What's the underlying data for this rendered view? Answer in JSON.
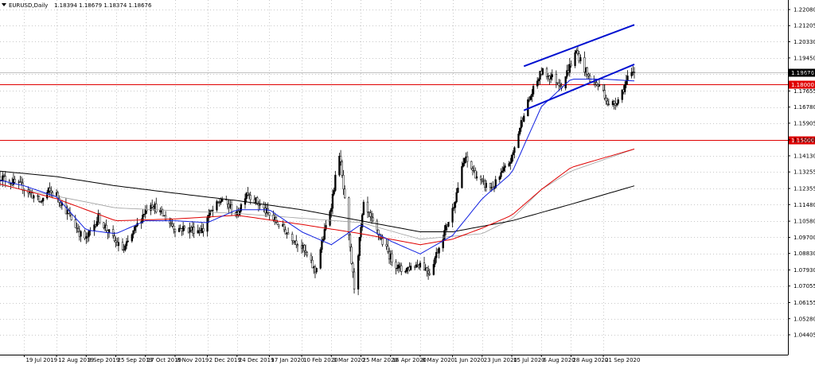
{
  "header": {
    "symbol": "EURUSD,Daily",
    "ohlc": "1.18394 1.18679 1.18374 1.18676"
  },
  "chart_data": {
    "type": "line",
    "title": "EURUSD,Daily",
    "xlabel": "",
    "ylabel": "",
    "ylim": [
      1.04225,
      1.2246
    ],
    "y_ticks": [
      "1.22080",
      "1.21205",
      "1.20330",
      "1.19450",
      "1.18575",
      "1.17655",
      "1.16780",
      "1.15905",
      "1.15000",
      "1.14130",
      "1.13255",
      "1.12355",
      "1.11480",
      "1.10580",
      "1.09700",
      "1.08830",
      "1.07930",
      "1.07055",
      "1.06155",
      "1.05280",
      "1.04405"
    ],
    "x_ticks": [
      "19 Jul 2019",
      "12 Aug 2019",
      "3 Sep 2019",
      "25 Sep 2019",
      "17 Oct 2019",
      "8 Nov 2019",
      "2 Dec 2019",
      "24 Dec 2019",
      "17 Jan 2020",
      "10 Feb 2020",
      "3 Mar 2020",
      "25 Mar 2020",
      "16 Apr 2020",
      "8 May 2020",
      "1 Jun 2020",
      "23 Jun 2020",
      "15 Jul 2020",
      "6 Aug 2020",
      "28 Aug 2020",
      "21 Sep 2020"
    ],
    "x_dates": [
      "2019-07-19",
      "2019-08-12",
      "2019-09-03",
      "2019-09-25",
      "2019-10-17",
      "2019-11-08",
      "2019-12-02",
      "2019-12-24",
      "2020-01-17",
      "2020-02-10",
      "2020-03-03",
      "2020-03-25",
      "2020-04-16",
      "2020-05-08",
      "2020-06-01",
      "2020-06-23",
      "2020-07-15",
      "2020-08-06",
      "2020-08-28",
      "2020-09-21"
    ],
    "price_anchors": [
      [
        "2019-07-01",
        1.13
      ],
      [
        "2019-07-19",
        1.124
      ],
      [
        "2019-07-31",
        1.116
      ],
      [
        "2019-08-06",
        1.122
      ],
      [
        "2019-08-12",
        1.12
      ],
      [
        "2019-08-30",
        1.0985
      ],
      [
        "2019-09-03",
        1.096
      ],
      [
        "2019-09-12",
        1.108
      ],
      [
        "2019-09-25",
        1.094
      ],
      [
        "2019-10-01",
        1.09
      ],
      [
        "2019-10-17",
        1.112
      ],
      [
        "2019-10-21",
        1.116
      ],
      [
        "2019-11-08",
        1.102
      ],
      [
        "2019-11-29",
        1.101
      ],
      [
        "2019-12-02",
        1.108
      ],
      [
        "2019-12-13",
        1.118
      ],
      [
        "2019-12-24",
        1.109
      ],
      [
        "2019-12-31",
        1.122
      ],
      [
        "2020-01-17",
        1.109
      ],
      [
        "2020-02-10",
        1.092
      ],
      [
        "2020-02-20",
        1.0785
      ],
      [
        "2020-03-03",
        1.115
      ],
      [
        "2020-03-09",
        1.143
      ],
      [
        "2020-03-20",
        1.07
      ],
      [
        "2020-03-27",
        1.114
      ],
      [
        "2020-04-16",
        1.086
      ],
      [
        "2020-04-24",
        1.079
      ],
      [
        "2020-05-08",
        1.083
      ],
      [
        "2020-05-15",
        1.078
      ],
      [
        "2020-06-01",
        1.112
      ],
      [
        "2020-06-10",
        1.14
      ],
      [
        "2020-06-23",
        1.126
      ],
      [
        "2020-07-01",
        1.124
      ],
      [
        "2020-07-15",
        1.14
      ],
      [
        "2020-07-24",
        1.165
      ],
      [
        "2020-07-31",
        1.177
      ],
      [
        "2020-08-06",
        1.187
      ],
      [
        "2020-08-14",
        1.184
      ],
      [
        "2020-08-21",
        1.18
      ],
      [
        "2020-09-01",
        1.198
      ],
      [
        "2020-09-10",
        1.184
      ],
      [
        "2020-09-21",
        1.177
      ],
      [
        "2020-09-25",
        1.168
      ],
      [
        "2020-10-02",
        1.172
      ],
      [
        "2020-10-09",
        1.183
      ],
      [
        "2020-10-14",
        1.1868
      ]
    ],
    "ma_fast_anchors": [
      [
        "2019-07-01",
        1.128
      ],
      [
        "2019-07-19",
        1.125
      ],
      [
        "2019-08-12",
        1.119
      ],
      [
        "2019-09-03",
        1.101
      ],
      [
        "2019-09-25",
        1.099
      ],
      [
        "2019-10-17",
        1.106
      ],
      [
        "2019-11-08",
        1.106
      ],
      [
        "2019-12-02",
        1.105
      ],
      [
        "2019-12-24",
        1.112
      ],
      [
        "2020-01-17",
        1.112
      ],
      [
        "2020-02-10",
        1.1
      ],
      [
        "2020-03-03",
        1.093
      ],
      [
        "2020-03-25",
        1.104
      ],
      [
        "2020-04-16",
        1.095
      ],
      [
        "2020-05-08",
        1.088
      ],
      [
        "2020-06-01",
        1.098
      ],
      [
        "2020-06-23",
        1.118
      ],
      [
        "2020-07-15",
        1.132
      ],
      [
        "2020-08-06",
        1.168
      ],
      [
        "2020-08-28",
        1.183
      ],
      [
        "2020-09-21",
        1.183
      ],
      [
        "2020-10-14",
        1.182
      ]
    ],
    "ma_mid_anchors": [
      [
        "2019-07-01",
        1.126
      ],
      [
        "2019-08-12",
        1.118
      ],
      [
        "2019-09-25",
        1.106
      ],
      [
        "2019-11-08",
        1.107
      ],
      [
        "2019-12-24",
        1.109
      ],
      [
        "2020-02-10",
        1.104
      ],
      [
        "2020-03-25",
        1.099
      ],
      [
        "2020-05-08",
        1.093
      ],
      [
        "2020-06-01",
        1.096
      ],
      [
        "2020-06-23",
        1.102
      ],
      [
        "2020-07-15",
        1.109
      ],
      [
        "2020-08-06",
        1.123
      ],
      [
        "2020-08-28",
        1.135
      ],
      [
        "2020-10-14",
        1.145
      ]
    ],
    "ma_slow_anchors": [
      [
        "2019-07-01",
        1.133
      ],
      [
        "2019-08-12",
        1.13
      ],
      [
        "2019-09-25",
        1.125
      ],
      [
        "2019-11-08",
        1.121
      ],
      [
        "2019-12-24",
        1.117
      ],
      [
        "2020-02-10",
        1.112
      ],
      [
        "2020-03-25",
        1.106
      ],
      [
        "2020-05-08",
        1.1
      ],
      [
        "2020-06-01",
        1.1
      ],
      [
        "2020-07-15",
        1.106
      ],
      [
        "2020-08-28",
        1.115
      ],
      [
        "2020-10-14",
        1.125
      ]
    ],
    "levels": [
      {
        "value": 1.18,
        "label": "1.18000",
        "color": "#e00000"
      },
      {
        "value": 1.15,
        "label": "1.15000",
        "color": "#e00000"
      }
    ],
    "last_price": {
      "value": 1.18676,
      "label": "1.18676",
      "color": "#000000"
    },
    "trend_lines": [
      {
        "from": [
          "2020-07-24",
          1.19
        ],
        "to": [
          "2020-10-14",
          1.2125
        ]
      },
      {
        "from": [
          "2020-07-24",
          1.166
        ],
        "to": [
          "2020-10-14",
          1.191
        ]
      }
    ],
    "colors": {
      "price": "#000000",
      "ma_fast": "#1020e0",
      "ma_mid": "#e00000",
      "ma_slow_light": "#a0a0a0",
      "ma_slow_dark": "#000000",
      "channel": "#0010d0",
      "grid": "#c8c8c8"
    },
    "grid": true
  }
}
